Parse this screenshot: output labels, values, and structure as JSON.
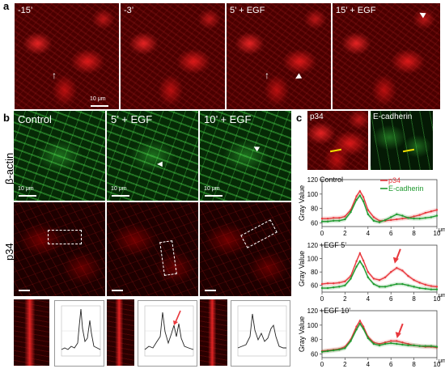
{
  "panel_a": {
    "letter": "a",
    "frames": [
      {
        "label": "-15’"
      },
      {
        "label": "-3’"
      },
      {
        "label": "5’ + EGF"
      },
      {
        "label": "15’ + EGF"
      }
    ],
    "scalebar": "10 μm"
  },
  "panel_b": {
    "letter": "b",
    "columns": [
      {
        "label": "Control"
      },
      {
        "label": "5’ + EGF"
      },
      {
        "label": "10’ + EGF"
      }
    ],
    "row_labels": [
      "β-actin",
      "p34"
    ],
    "scalebar": "10 μm"
  },
  "panel_c": {
    "letter": "c",
    "image_labels": [
      "p34",
      "E-cadherin"
    ],
    "y_axis_label": "Gray Value",
    "x_axis_unit": "μm",
    "legend": [
      "p34",
      "E-cadherin"
    ],
    "colors": {
      "p34": "#e8383d",
      "ecadherin": "#1f9a2f"
    }
  },
  "chart_data": [
    {
      "type": "line",
      "title": "Control",
      "ylabel": "Gray Value",
      "xlabel": "μm",
      "xlim": [
        0,
        10
      ],
      "ylim": [
        55,
        120
      ],
      "x_ticks": [
        0,
        2,
        4,
        6,
        8,
        10
      ],
      "y_ticks": [
        60,
        80,
        100,
        120
      ],
      "x": [
        0,
        0.5,
        1,
        1.5,
        2,
        2.5,
        3,
        3.3,
        3.6,
        4,
        4.5,
        5,
        5.5,
        6,
        6.5,
        7,
        7.5,
        8,
        8.5,
        9,
        9.5,
        10
      ],
      "series": [
        {
          "name": "p34",
          "values": [
            66,
            66,
            67,
            67,
            69,
            78,
            97,
            104,
            96,
            78,
            68,
            63,
            63,
            64,
            65,
            66,
            67,
            69,
            71,
            74,
            76,
            78
          ]
        },
        {
          "name": "E-cadherin",
          "values": [
            62,
            62,
            63,
            63,
            65,
            75,
            92,
            98,
            90,
            72,
            63,
            61,
            64,
            68,
            72,
            70,
            67,
            66,
            66,
            67,
            68,
            70
          ]
        }
      ]
    },
    {
      "type": "line",
      "title": "+EGF 5’",
      "ylabel": "Gray Value",
      "xlabel": "μm",
      "xlim": [
        0,
        10
      ],
      "ylim": [
        50,
        120
      ],
      "x_ticks": [
        0,
        2,
        4,
        6,
        8,
        10
      ],
      "y_ticks": [
        60,
        80,
        100,
        120
      ],
      "x": [
        0,
        0.5,
        1,
        1.5,
        2,
        2.5,
        3,
        3.3,
        3.6,
        4,
        4.5,
        5,
        5.5,
        6,
        6.5,
        7,
        7.5,
        8,
        8.5,
        9,
        9.5,
        10
      ],
      "series": [
        {
          "name": "p34",
          "values": [
            62,
            63,
            63,
            64,
            66,
            74,
            96,
            108,
            97,
            80,
            70,
            68,
            72,
            80,
            86,
            82,
            74,
            68,
            64,
            61,
            59,
            58
          ]
        },
        {
          "name": "E-cadherin",
          "values": [
            56,
            56,
            57,
            58,
            60,
            70,
            88,
            96,
            88,
            72,
            62,
            58,
            58,
            60,
            62,
            62,
            60,
            58,
            56,
            55,
            54,
            54
          ]
        }
      ]
    },
    {
      "type": "line",
      "title": "+EGF 10’",
      "ylabel": "Gray Value",
      "xlabel": "μm",
      "xlim": [
        0,
        10
      ],
      "ylim": [
        55,
        120
      ],
      "x_ticks": [
        0,
        2,
        4,
        6,
        8,
        10
      ],
      "y_ticks": [
        60,
        80,
        100,
        120
      ],
      "x": [
        0,
        0.5,
        1,
        1.5,
        2,
        2.5,
        3,
        3.3,
        3.6,
        4,
        4.5,
        5,
        5.5,
        6,
        6.5,
        7,
        7.5,
        8,
        8.5,
        9,
        9.5,
        10
      ],
      "series": [
        {
          "name": "p34",
          "values": [
            64,
            65,
            66,
            67,
            70,
            80,
            98,
            106,
            98,
            84,
            76,
            74,
            76,
            78,
            78,
            76,
            74,
            72,
            71,
            70,
            70,
            69
          ]
        },
        {
          "name": "E-cadherin",
          "values": [
            63,
            64,
            65,
            66,
            68,
            78,
            94,
            102,
            95,
            82,
            74,
            72,
            74,
            75,
            74,
            73,
            72,
            72,
            71,
            71,
            71,
            70
          ]
        }
      ]
    }
  ]
}
